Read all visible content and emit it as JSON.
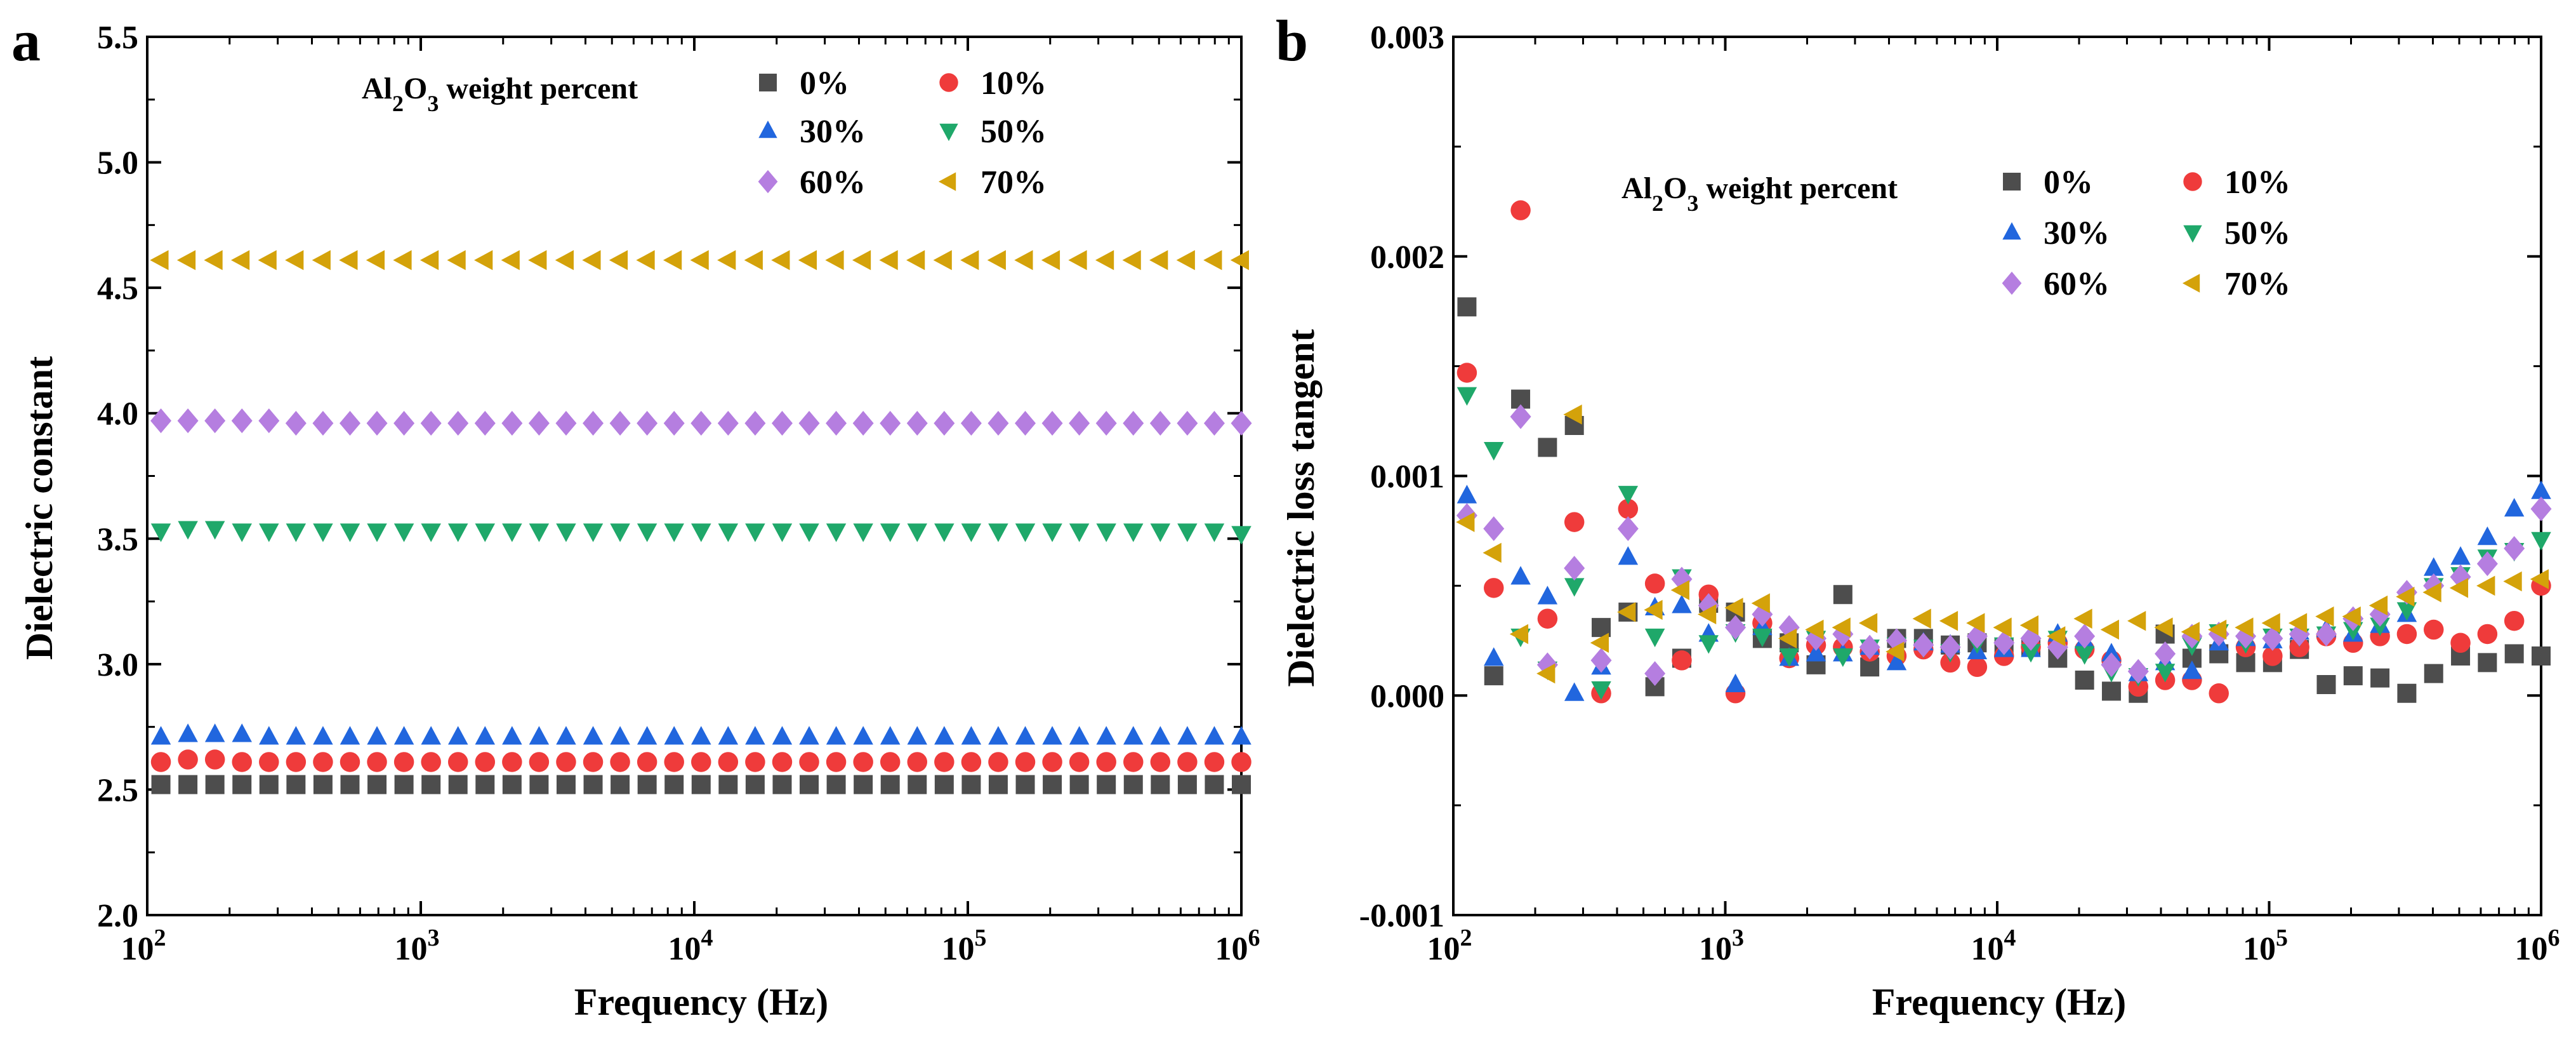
{
  "chart_data": [
    {
      "panel": "a",
      "type": "scatter",
      "xscale": "log",
      "xlabel": "Frequency (Hz)",
      "ylabel": "Dielectric constant",
      "xlim": [
        100,
        1000000
      ],
      "ylim": [
        2.0,
        5.5
      ],
      "xticks": [
        {
          "base": "10",
          "exp": "2"
        },
        {
          "base": "10",
          "exp": "3"
        },
        {
          "base": "10",
          "exp": "4"
        },
        {
          "base": "10",
          "exp": "5"
        },
        {
          "base": "10",
          "exp": "6"
        }
      ],
      "xtick_values": [
        100,
        1000,
        10000,
        100000,
        1000000
      ],
      "yticks": [
        "2.0",
        "2.5",
        "3.0",
        "3.5",
        "4.0",
        "4.5",
        "5.0",
        "5.5"
      ],
      "legend": {
        "title_parts": {
          "a": "Al",
          "s1": "2",
          "b": "O",
          "s2": "3",
          "c": " weight percent"
        },
        "labels": [
          "0%",
          "10%",
          "30%",
          "50%",
          "60%",
          "70%"
        ]
      },
      "series": [
        {
          "name": "0%",
          "marker": "square",
          "color": "#4d4d4d",
          "values": [
            2.52,
            2.52,
            2.52,
            2.52,
            2.52,
            2.52,
            2.52,
            2.52,
            2.52,
            2.52,
            2.52,
            2.52,
            2.52,
            2.52,
            2.52,
            2.52,
            2.52,
            2.52,
            2.52,
            2.52,
            2.52,
            2.52,
            2.52,
            2.52,
            2.52,
            2.52,
            2.52,
            2.52,
            2.52,
            2.52,
            2.52,
            2.52,
            2.52,
            2.52,
            2.52,
            2.52,
            2.52,
            2.52,
            2.52,
            2.52,
            2.52
          ]
        },
        {
          "name": "10%",
          "marker": "circle",
          "color": "#ef3b3b",
          "values": [
            2.61,
            2.62,
            2.62,
            2.61,
            2.61,
            2.61,
            2.61,
            2.61,
            2.61,
            2.61,
            2.61,
            2.61,
            2.61,
            2.61,
            2.61,
            2.61,
            2.61,
            2.61,
            2.61,
            2.61,
            2.61,
            2.61,
            2.61,
            2.61,
            2.61,
            2.61,
            2.61,
            2.61,
            2.61,
            2.61,
            2.61,
            2.61,
            2.61,
            2.61,
            2.61,
            2.61,
            2.61,
            2.61,
            2.61,
            2.61,
            2.61
          ]
        },
        {
          "name": "30%",
          "marker": "triangle-up",
          "color": "#2166de",
          "values": [
            2.71,
            2.72,
            2.72,
            2.72,
            2.71,
            2.71,
            2.71,
            2.71,
            2.71,
            2.71,
            2.71,
            2.71,
            2.71,
            2.71,
            2.71,
            2.71,
            2.71,
            2.71,
            2.71,
            2.71,
            2.71,
            2.71,
            2.71,
            2.71,
            2.71,
            2.71,
            2.71,
            2.71,
            2.71,
            2.71,
            2.71,
            2.71,
            2.71,
            2.71,
            2.71,
            2.71,
            2.71,
            2.71,
            2.71,
            2.71,
            2.71
          ]
        },
        {
          "name": "50%",
          "marker": "triangle-down",
          "color": "#1fa86a",
          "values": [
            3.53,
            3.54,
            3.54,
            3.53,
            3.53,
            3.53,
            3.53,
            3.53,
            3.53,
            3.53,
            3.53,
            3.53,
            3.53,
            3.53,
            3.53,
            3.53,
            3.53,
            3.53,
            3.53,
            3.53,
            3.53,
            3.53,
            3.53,
            3.53,
            3.53,
            3.53,
            3.53,
            3.53,
            3.53,
            3.53,
            3.53,
            3.53,
            3.53,
            3.53,
            3.53,
            3.53,
            3.53,
            3.53,
            3.53,
            3.53,
            3.52
          ]
        },
        {
          "name": "60%",
          "marker": "diamond",
          "color": "#b57ee0",
          "values": [
            3.97,
            3.97,
            3.97,
            3.97,
            3.97,
            3.96,
            3.96,
            3.96,
            3.96,
            3.96,
            3.96,
            3.96,
            3.96,
            3.96,
            3.96,
            3.96,
            3.96,
            3.96,
            3.96,
            3.96,
            3.96,
            3.96,
            3.96,
            3.96,
            3.96,
            3.96,
            3.96,
            3.96,
            3.96,
            3.96,
            3.96,
            3.96,
            3.96,
            3.96,
            3.96,
            3.96,
            3.96,
            3.96,
            3.96,
            3.96,
            3.96
          ]
        },
        {
          "name": "70%",
          "marker": "triangle-left",
          "color": "#d4a20a",
          "values": [
            4.61,
            4.61,
            4.61,
            4.61,
            4.61,
            4.61,
            4.61,
            4.61,
            4.61,
            4.61,
            4.61,
            4.61,
            4.61,
            4.61,
            4.61,
            4.61,
            4.61,
            4.61,
            4.61,
            4.61,
            4.61,
            4.61,
            4.61,
            4.61,
            4.61,
            4.61,
            4.61,
            4.61,
            4.61,
            4.61,
            4.61,
            4.61,
            4.61,
            4.61,
            4.61,
            4.61,
            4.61,
            4.61,
            4.61,
            4.61,
            4.61
          ]
        }
      ]
    },
    {
      "panel": "b",
      "type": "scatter",
      "xscale": "log",
      "xlabel": "Frequency (Hz)",
      "ylabel": "Dielectric loss tangent",
      "xlim": [
        100,
        1000000
      ],
      "ylim": [
        -0.001,
        0.003
      ],
      "xticks": [
        {
          "base": "10",
          "exp": "2"
        },
        {
          "base": "10",
          "exp": "3"
        },
        {
          "base": "10",
          "exp": "4"
        },
        {
          "base": "10",
          "exp": "5"
        },
        {
          "base": "10",
          "exp": "6"
        }
      ],
      "xtick_values": [
        100,
        1000,
        10000,
        100000,
        1000000
      ],
      "yticks": [
        "-0.001",
        "0.000",
        "0.001",
        "0.002",
        "0.003"
      ],
      "ytick_values": [
        -0.001,
        0.0,
        0.001,
        0.002,
        0.003
      ],
      "legend": {
        "title_parts": {
          "a": "Al",
          "s1": "2",
          "b": "O",
          "s2": "3",
          "c": " weight percent"
        },
        "labels": [
          "0%",
          "10%",
          "30%",
          "50%",
          "60%",
          "70%"
        ]
      },
      "series": [
        {
          "name": "0%",
          "marker": "square",
          "color": "#4d4d4d",
          "values": [
            0.00177,
            9e-05,
            0.00135,
            0.00113,
            0.00123,
            0.00031,
            0.00038,
            4e-05,
            0.00017,
            0.00042,
            0.00038,
            0.00026,
            0.00024,
            0.00014,
            0.00046,
            0.00013,
            0.00026,
            0.00026,
            0.00023,
            0.00024,
            0.00022,
            0.00022,
            0.00017,
            7e-05,
            2e-05,
            1e-05,
            0.00028,
            0.00017,
            0.00019,
            0.00015,
            0.00015,
            0.00021,
            5e-05,
            9e-05,
            8e-05,
            1e-05,
            0.0001,
            0.00018,
            0.00015,
            0.00019,
            0.00018
          ]
        },
        {
          "name": "10%",
          "marker": "circle",
          "color": "#ef3b3b",
          "values": [
            0.00147,
            0.00049,
            0.00221,
            0.00035,
            0.00079,
            1e-05,
            0.00085,
            0.00051,
            0.00016,
            0.00046,
            1e-05,
            0.00033,
            0.00017,
            0.00023,
            0.00022,
            0.0002,
            0.00018,
            0.00021,
            0.00015,
            0.00013,
            0.00018,
            0.00022,
            0.00024,
            0.00021,
            0.00016,
            4e-05,
            7e-05,
            7e-05,
            1e-05,
            0.00022,
            0.00018,
            0.00022,
            0.00027,
            0.00024,
            0.00027,
            0.00028,
            0.0003,
            0.00024,
            0.00028,
            0.00034,
            0.0005
          ]
        },
        {
          "name": "30%",
          "marker": "triangle-up",
          "color": "#2166de",
          "values": [
            0.00091,
            0.00017,
            0.00054,
            0.00045,
            1e-05,
            0.00013,
            0.00063,
            0.0004,
            0.00041,
            0.00028,
            5e-05,
            0.00031,
            0.00017,
            0.00019,
            0.00019,
            0.00022,
            0.00015,
            0.00024,
            0.00023,
            0.0002,
            0.00021,
            0.00021,
            0.00028,
            0.00025,
            0.00019,
            0.0001,
            0.00015,
            0.00011,
            0.00024,
            0.00026,
            0.00025,
            0.00029,
            0.0003,
            0.00028,
            0.00032,
            0.00037,
            0.00058,
            0.00063,
            0.00072,
            0.00085,
            0.00093
          ]
        },
        {
          "name": "50%",
          "marker": "triangle-down",
          "color": "#1fa86a",
          "values": [
            0.00137,
            0.00112,
            0.00027,
            0.00012,
            0.0005,
            3e-05,
            0.00092,
            0.00027,
            0.00054,
            0.00024,
            0.00029,
            0.00027,
            0.00018,
            0.00026,
            0.00018,
            0.00022,
            0.00023,
            0.00022,
            0.0002,
            0.00024,
            0.00023,
            0.0002,
            0.00026,
            0.00019,
            0.00011,
            9e-05,
            0.00011,
            0.00023,
            0.00029,
            0.00024,
            0.00027,
            0.00027,
            0.00028,
            0.0003,
            0.00032,
            0.00039,
            0.0005,
            0.00055,
            0.00063,
            0.00066,
            0.00071
          ]
        },
        {
          "name": "60%",
          "marker": "diamond",
          "color": "#b57ee0",
          "values": [
            0.00082,
            0.00076,
            0.00127,
            0.00014,
            0.00058,
            0.00016,
            0.00076,
            0.0001,
            0.00053,
            0.00041,
            0.00031,
            0.00037,
            0.00031,
            0.00026,
            0.00028,
            0.00022,
            0.00025,
            0.00023,
            0.00022,
            0.00027,
            0.00024,
            0.00026,
            0.00022,
            0.00027,
            0.00014,
            0.00011,
            0.00019,
            0.00027,
            0.00028,
            0.00027,
            0.00026,
            0.00028,
            0.00028,
            0.00035,
            0.00037,
            0.00047,
            0.0005,
            0.00054,
            0.0006,
            0.00067,
            0.00085
          ]
        },
        {
          "name": "70%",
          "marker": "triangle-left",
          "color": "#d4a20a",
          "values": [
            0.00079,
            0.00065,
            0.00028,
            0.0001,
            0.00128,
            0.00024,
            0.00038,
            0.00039,
            0.00048,
            0.00037,
            0.0004,
            0.00042,
            0.00026,
            0.0003,
            0.00031,
            0.00033,
            0.0002,
            0.00035,
            0.00034,
            0.00033,
            0.00031,
            0.00032,
            0.00027,
            0.00035,
            0.0003,
            0.00034,
            0.00031,
            0.00029,
            0.0003,
            0.00031,
            0.00033,
            0.00033,
            0.00036,
            0.00036,
            0.00041,
            0.00045,
            0.00047,
            0.00049,
            0.0005,
            0.00052,
            0.00053
          ]
        }
      ]
    }
  ]
}
